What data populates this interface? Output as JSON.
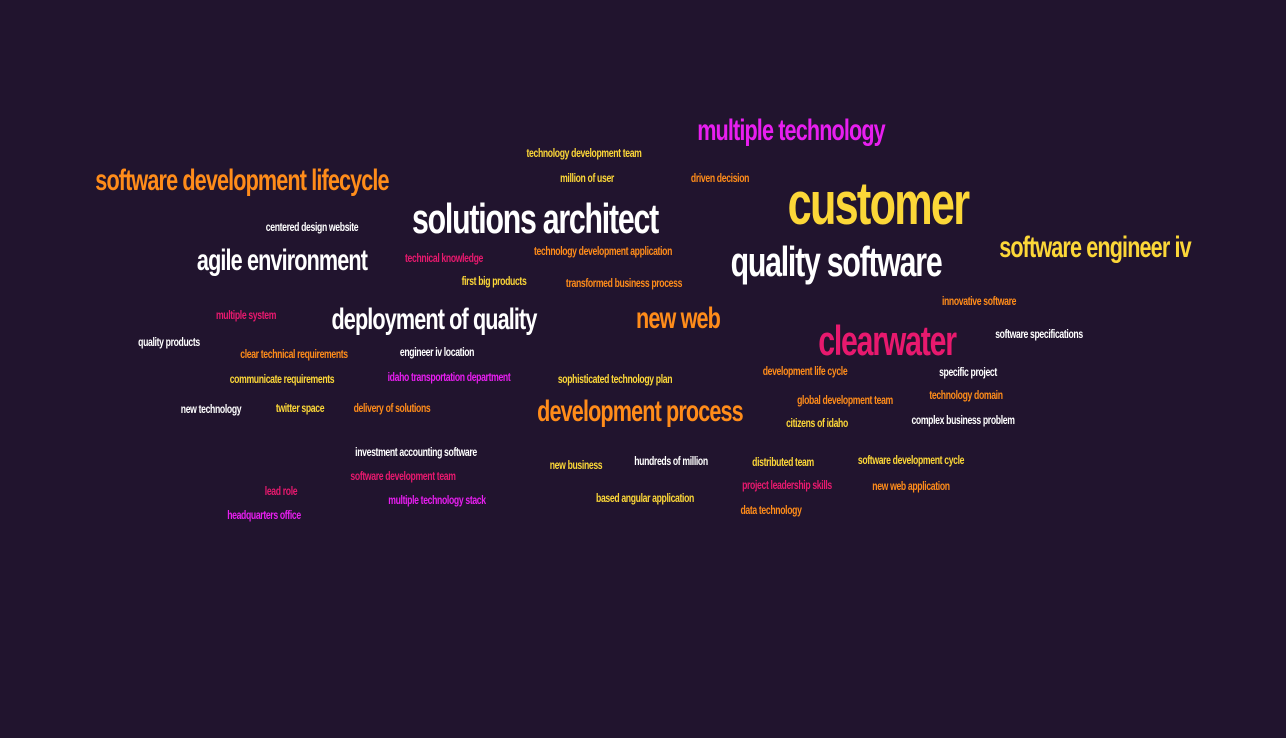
{
  "colors": {
    "background": "#21142e",
    "white": "#ffffff",
    "yellow": "#fcd738",
    "orange": "#ff8c1a",
    "magenta": "#e81ef0",
    "pink": "#e8196e"
  },
  "words": [
    {
      "text": "customer",
      "color": "yellow"
    },
    {
      "text": "solutions architect",
      "color": "white"
    },
    {
      "text": "quality software",
      "color": "white"
    },
    {
      "text": "clearwater",
      "color": "pink"
    },
    {
      "text": "multiple technology",
      "color": "magenta"
    },
    {
      "text": "software development lifecycle",
      "color": "orange"
    },
    {
      "text": "software engineer iv",
      "color": "yellow"
    },
    {
      "text": "agile environment",
      "color": "white"
    },
    {
      "text": "deployment of quality",
      "color": "white"
    },
    {
      "text": "development process",
      "color": "orange"
    },
    {
      "text": "new web",
      "color": "orange"
    },
    {
      "text": "technology development team",
      "color": "yellow"
    },
    {
      "text": "million of user",
      "color": "yellow"
    },
    {
      "text": "driven decision",
      "color": "orange"
    },
    {
      "text": "centered design website",
      "color": "white"
    },
    {
      "text": "technical knowledge",
      "color": "pink"
    },
    {
      "text": "technology development application",
      "color": "orange"
    },
    {
      "text": "first big products",
      "color": "yellow"
    },
    {
      "text": "transformed business process",
      "color": "orange"
    },
    {
      "text": "innovative software",
      "color": "orange"
    },
    {
      "text": "software specifications",
      "color": "white"
    },
    {
      "text": "multiple system",
      "color": "pink"
    },
    {
      "text": "quality products",
      "color": "white"
    },
    {
      "text": "clear technical requirements",
      "color": "orange"
    },
    {
      "text": "engineer iv location",
      "color": "white"
    },
    {
      "text": "development life cycle",
      "color": "orange"
    },
    {
      "text": "specific project",
      "color": "white"
    },
    {
      "text": "communicate requirements",
      "color": "yellow"
    },
    {
      "text": "idaho transportation department",
      "color": "magenta"
    },
    {
      "text": "sophisticated technology plan",
      "color": "yellow"
    },
    {
      "text": "global development team",
      "color": "orange"
    },
    {
      "text": "technology domain",
      "color": "orange"
    },
    {
      "text": "new technology",
      "color": "white"
    },
    {
      "text": "twitter space",
      "color": "yellow"
    },
    {
      "text": "delivery of solutions",
      "color": "orange"
    },
    {
      "text": "citizens of idaho",
      "color": "yellow"
    },
    {
      "text": "complex business problem",
      "color": "white"
    },
    {
      "text": "investment accounting software",
      "color": "white"
    },
    {
      "text": "software development team",
      "color": "pink"
    },
    {
      "text": "new business",
      "color": "yellow"
    },
    {
      "text": "hundreds of million",
      "color": "white"
    },
    {
      "text": "distributed team",
      "color": "yellow"
    },
    {
      "text": "software development cycle",
      "color": "yellow"
    },
    {
      "text": "lead role",
      "color": "pink"
    },
    {
      "text": "multiple technology stack",
      "color": "magenta"
    },
    {
      "text": "based angular application",
      "color": "yellow"
    },
    {
      "text": "project leadership skills",
      "color": "pink"
    },
    {
      "text": "new web application",
      "color": "orange"
    },
    {
      "text": "headquarters office",
      "color": "magenta"
    },
    {
      "text": "data technology",
      "color": "orange"
    }
  ]
}
